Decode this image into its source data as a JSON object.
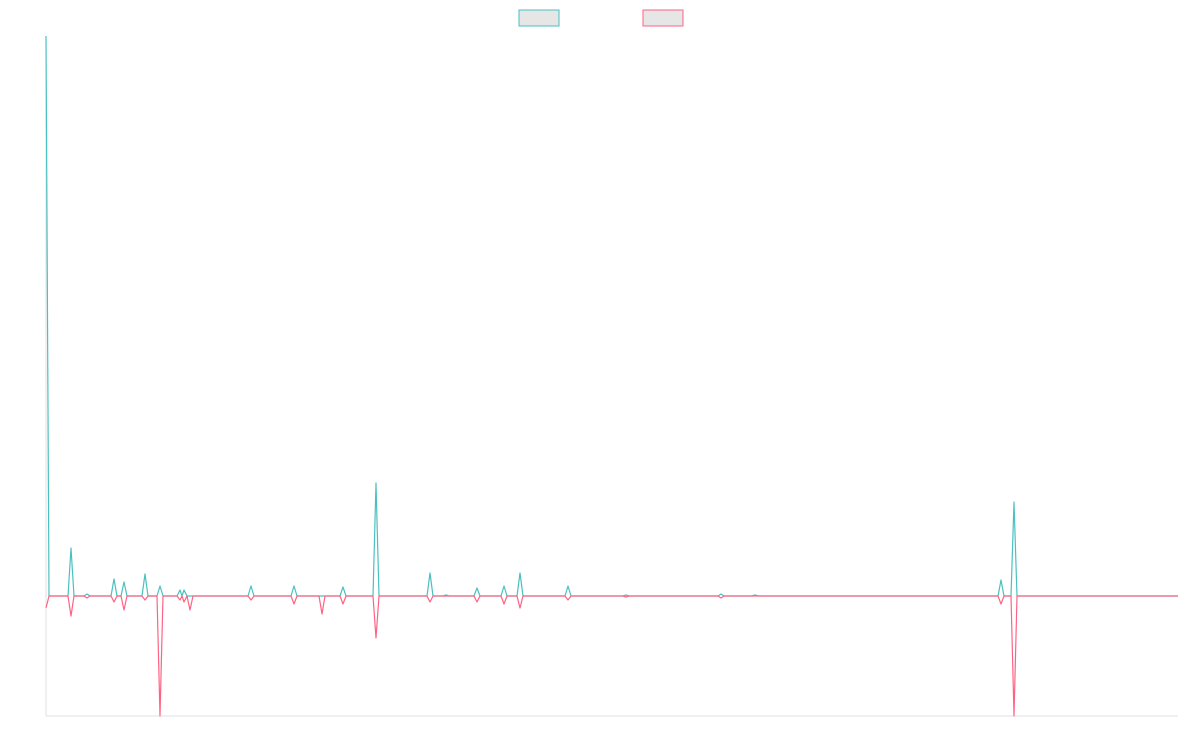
{
  "chart_data": {
    "type": "line",
    "legend": "top",
    "xlim": [
      0,
      1132
    ],
    "ylim": [
      -120,
      560
    ],
    "x": [
      0,
      3,
      22,
      25,
      28,
      38,
      41,
      44,
      65,
      68,
      71,
      75,
      78,
      81,
      96,
      99,
      102,
      111,
      114,
      117,
      131,
      134,
      136,
      138,
      141,
      144,
      147,
      202,
      205,
      208,
      245,
      248,
      251,
      273,
      276,
      279,
      294,
      297,
      300,
      327,
      330,
      333,
      381,
      384,
      387,
      397,
      400,
      403,
      428,
      431,
      434,
      455,
      458,
      461,
      471,
      474,
      477,
      519,
      522,
      525,
      577,
      580,
      583,
      672,
      675,
      678,
      706,
      709,
      712,
      952,
      955,
      958,
      965,
      968,
      971,
      1132
    ],
    "series": [
      {
        "color": "#4bc0c0",
        "values": [
          560,
          0,
          0,
          48,
          0,
          0,
          2,
          0,
          0,
          17,
          0,
          0,
          14,
          0,
          0,
          22,
          0,
          0,
          10,
          0,
          0,
          6,
          0,
          6,
          0,
          0,
          0,
          0,
          10,
          0,
          0,
          10,
          0,
          0,
          0,
          0,
          0,
          9,
          0,
          0,
          113,
          0,
          0,
          23,
          0,
          0,
          1,
          0,
          0,
          8,
          0,
          0,
          10,
          0,
          0,
          23,
          0,
          0,
          10,
          0,
          0,
          1,
          0,
          0,
          2,
          0,
          0,
          1,
          0,
          0,
          16,
          0,
          0,
          94,
          0,
          0
        ]
      },
      {
        "color": "#ff6384",
        "values": [
          -12,
          0,
          0,
          -20,
          0,
          0,
          -2,
          0,
          0,
          -6,
          0,
          0,
          -14,
          0,
          0,
          -4,
          0,
          0,
          -120,
          0,
          0,
          -4,
          0,
          -6,
          0,
          -14,
          0,
          0,
          -4,
          0,
          0,
          -8,
          0,
          0,
          -18,
          0,
          0,
          -8,
          0,
          0,
          -42,
          0,
          0,
          -6,
          0,
          0,
          0,
          0,
          0,
          -6,
          0,
          0,
          -8,
          0,
          0,
          -12,
          0,
          0,
          -4,
          0,
          0,
          -1,
          0,
          0,
          -2,
          0,
          0,
          0,
          0,
          0,
          -8,
          0,
          0,
          -120,
          0,
          0
        ]
      }
    ]
  }
}
